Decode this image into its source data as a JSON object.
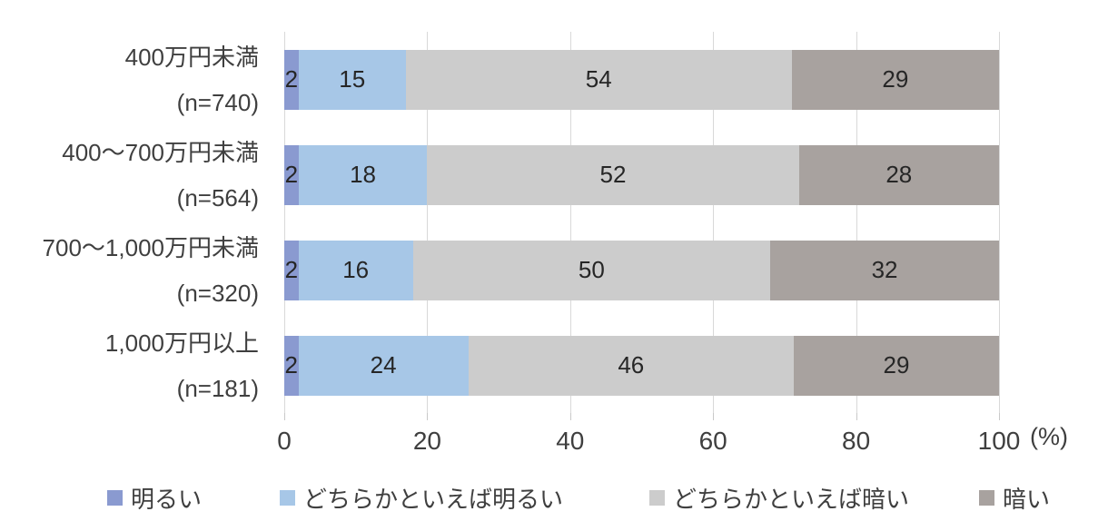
{
  "chart_data": {
    "type": "bar",
    "orientation": "horizontal",
    "stacked": true,
    "title": "",
    "xlabel": "(%)",
    "ylabel": "",
    "unit_label": "(%)",
    "xlim": [
      0,
      100
    ],
    "x_ticks": [
      0,
      20,
      40,
      60,
      80,
      100
    ],
    "grid": true,
    "legend_position": "bottom",
    "categories": [
      {
        "label": "400万円未満",
        "n_label": "(n=740)"
      },
      {
        "label": "400〜700万円未満",
        "n_label": "(n=564)"
      },
      {
        "label": "700〜1,000万円未満",
        "n_label": "(n=320)"
      },
      {
        "label": "1,000万円以上",
        "n_label": "(n=181)"
      }
    ],
    "series": [
      {
        "name": "明るい",
        "color": "#8A9AD0",
        "values": [
          2,
          2,
          2,
          2
        ]
      },
      {
        "name": "どちらかといえば明るい",
        "color": "#A7C7E7",
        "values": [
          15,
          18,
          16,
          24
        ]
      },
      {
        "name": "どちらかといえば暗い",
        "color": "#CCCCCC",
        "values": [
          54,
          52,
          50,
          46
        ]
      },
      {
        "name": "暗い",
        "color": "#A8A29F",
        "values": [
          29,
          28,
          32,
          29
        ]
      }
    ],
    "colors": {
      "gridline": "#D9D9D9",
      "axis_text": "#3F3F3F",
      "data_label": "#262626"
    },
    "legend_x_positions": [
      118,
      308,
      715,
      1078
    ]
  }
}
